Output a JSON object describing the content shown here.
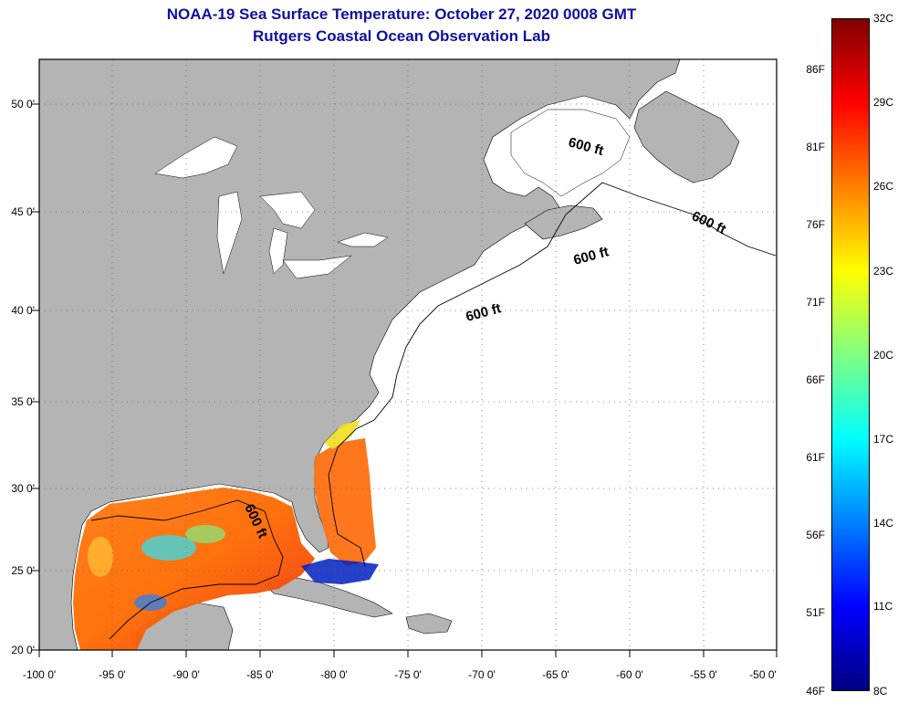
{
  "title": {
    "line1": "NOAA-19 Sea Surface Temperature:  October 27, 2020 0008 GMT",
    "line2": "Rutgers Coastal Ocean Observation Lab"
  },
  "map": {
    "lat_labels": [
      "50 0'",
      "45 0'",
      "40 0'",
      "35 0'",
      "30 0'",
      "25 0'",
      "20 0'"
    ],
    "lon_labels": [
      "-100 0'",
      "-95 0'",
      "-90 0'",
      "-85 0'",
      "-80 0'",
      "-75 0'",
      "-70 0'",
      "-65 0'",
      "-60 0'",
      "-55 0'",
      "-50 0'"
    ],
    "contour_label": "600 ft",
    "colors": {
      "land": "#b4b4b4",
      "water": "#ffffff",
      "gridline": "#666666"
    }
  },
  "colorbar": {
    "celsius_labels": [
      "32C",
      "29C",
      "26C",
      "23C",
      "20C",
      "17C",
      "14C",
      "11C",
      "8C"
    ],
    "fahrenheit_labels": [
      "86F",
      "81F",
      "76F",
      "71F",
      "66F",
      "61F",
      "56F",
      "51F",
      "46F"
    ],
    "gradient": [
      "#800000",
      "#ff0000",
      "#ff8000",
      "#ffff00",
      "#80ff80",
      "#00ffff",
      "#0080ff",
      "#0000ff",
      "#000080"
    ]
  }
}
